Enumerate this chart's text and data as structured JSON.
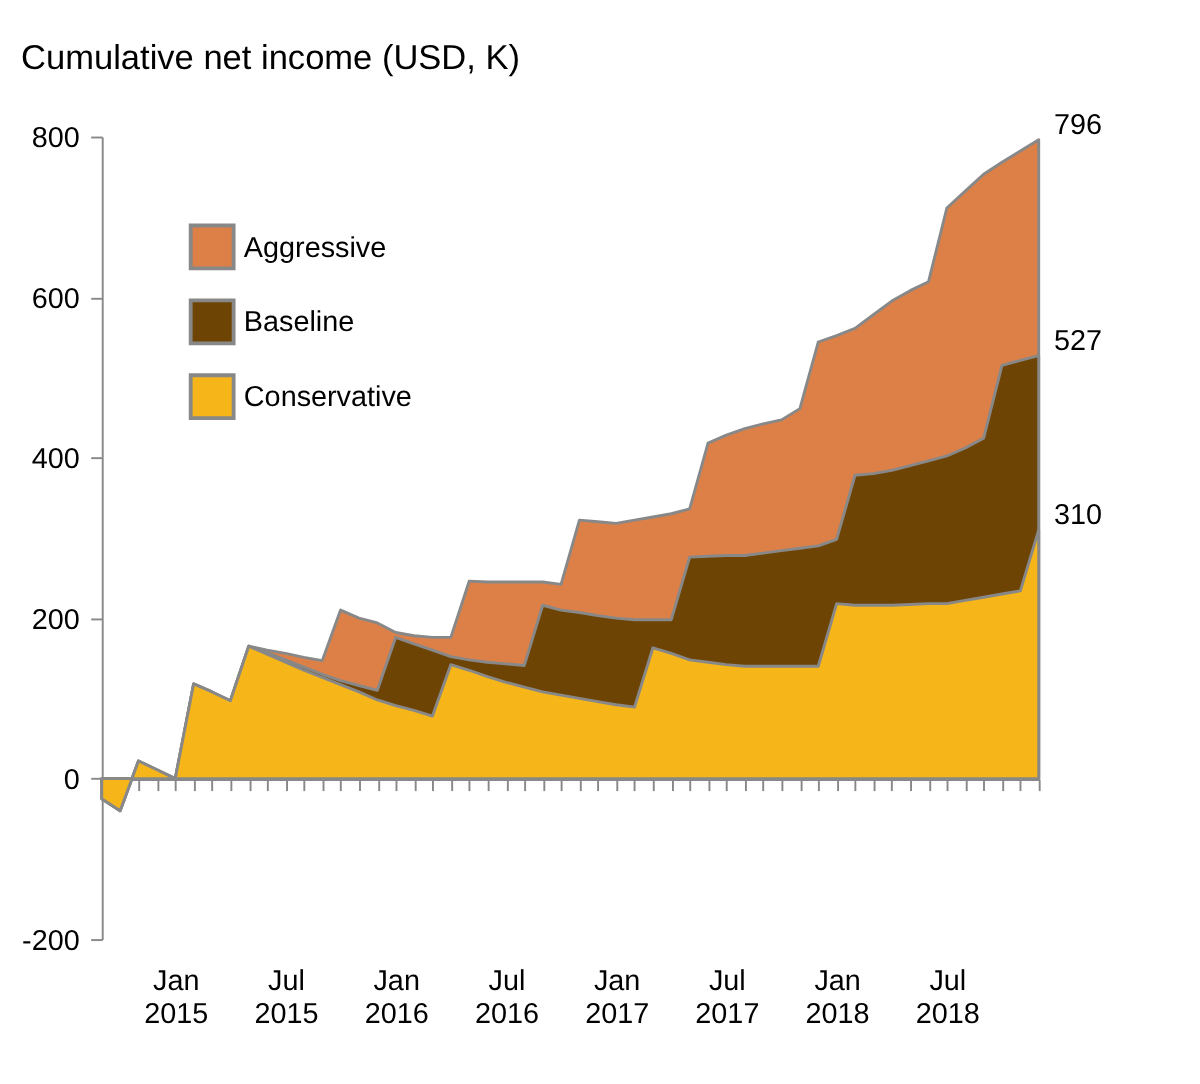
{
  "chart_data": {
    "type": "area",
    "title": "Cumulative net income (USD, K)",
    "categories": [
      null,
      null,
      null,
      null,
      "Jan 2015",
      null,
      null,
      null,
      null,
      null,
      "Jul 2015",
      null,
      null,
      null,
      null,
      null,
      "Jan 2016",
      null,
      null,
      null,
      null,
      null,
      "Jul 2016",
      null,
      null,
      null,
      null,
      null,
      "Jan 2017",
      null,
      null,
      null,
      null,
      null,
      "Jul 2017",
      null,
      null,
      null,
      null,
      null,
      "Jan 2018",
      null,
      null,
      null,
      null,
      null,
      "Jul 2018",
      null,
      null,
      null,
      null,
      null
    ],
    "series": [
      {
        "name": "Aggressive",
        "color": "#dd8048",
        "values": [
          -25,
          -40,
          22,
          11,
          0,
          118,
          108,
          97,
          165,
          160,
          156,
          151,
          147,
          210,
          200,
          194,
          182,
          178,
          176,
          176,
          246,
          245,
          245,
          245,
          245,
          242,
          322,
          320,
          318,
          322,
          326,
          330,
          336,
          418,
          428,
          436,
          442,
          447,
          461,
          544,
          552,
          561,
          578,
          595,
          608,
          619,
          711,
          732,
          753,
          768,
          782,
          796
        ],
        "value_labels": [
          null,
          null,
          null,
          null,
          null,
          null,
          null,
          null,
          null,
          null,
          null,
          null,
          null,
          null,
          null,
          null,
          null,
          null,
          null,
          null,
          null,
          null,
          null,
          null,
          null,
          null,
          null,
          null,
          null,
          null,
          null,
          null,
          null,
          null,
          null,
          null,
          null,
          null,
          null,
          null,
          null,
          null,
          null,
          null,
          null,
          null,
          null,
          null,
          null,
          null,
          null,
          "796"
        ]
      },
      {
        "name": "Baseline",
        "color": "#6e4405",
        "values": [
          -25,
          -40,
          22,
          11,
          0,
          118,
          108,
          97,
          165,
          157,
          148,
          139,
          130,
          122,
          116,
          110,
          176,
          168,
          160,
          152,
          148,
          145,
          143,
          141,
          216,
          210,
          207,
          203,
          200,
          198,
          198,
          198,
          276,
          277,
          278,
          278,
          281,
          284,
          287,
          290,
          298,
          378,
          380,
          384,
          390,
          396,
          402,
          412,
          424,
          515,
          521,
          527
        ],
        "value_labels": [
          null,
          null,
          null,
          null,
          null,
          null,
          null,
          null,
          null,
          null,
          null,
          null,
          null,
          null,
          null,
          null,
          null,
          null,
          null,
          null,
          null,
          null,
          null,
          null,
          null,
          null,
          null,
          null,
          null,
          null,
          null,
          null,
          null,
          null,
          null,
          null,
          null,
          null,
          null,
          null,
          null,
          null,
          null,
          null,
          null,
          null,
          null,
          null,
          null,
          null,
          null,
          "527"
        ]
      },
      {
        "name": "Conservative",
        "color": "#f6b619",
        "values": [
          -25,
          -40,
          22,
          11,
          0,
          118,
          108,
          97,
          165,
          155,
          145,
          135,
          126,
          117,
          108,
          98,
          91,
          85,
          78,
          142,
          135,
          127,
          120,
          114,
          108,
          104,
          100,
          96,
          92,
          89,
          163,
          156,
          148,
          145,
          142,
          140,
          140,
          140,
          140,
          140,
          218,
          216,
          216,
          216,
          217,
          218,
          218,
          222,
          226,
          230,
          234,
          310
        ],
        "value_labels": [
          null,
          null,
          null,
          null,
          null,
          null,
          null,
          null,
          null,
          null,
          null,
          null,
          null,
          null,
          null,
          null,
          null,
          null,
          null,
          null,
          null,
          null,
          null,
          null,
          null,
          null,
          null,
          null,
          null,
          null,
          null,
          null,
          null,
          null,
          null,
          null,
          null,
          null,
          null,
          null,
          null,
          null,
          null,
          null,
          null,
          null,
          null,
          null,
          null,
          null,
          null,
          "310"
        ]
      }
    ],
    "ylim": [
      -200,
      800
    ],
    "yticks": [
      -200,
      0,
      200,
      400,
      600,
      800
    ],
    "legend": "top left"
  }
}
